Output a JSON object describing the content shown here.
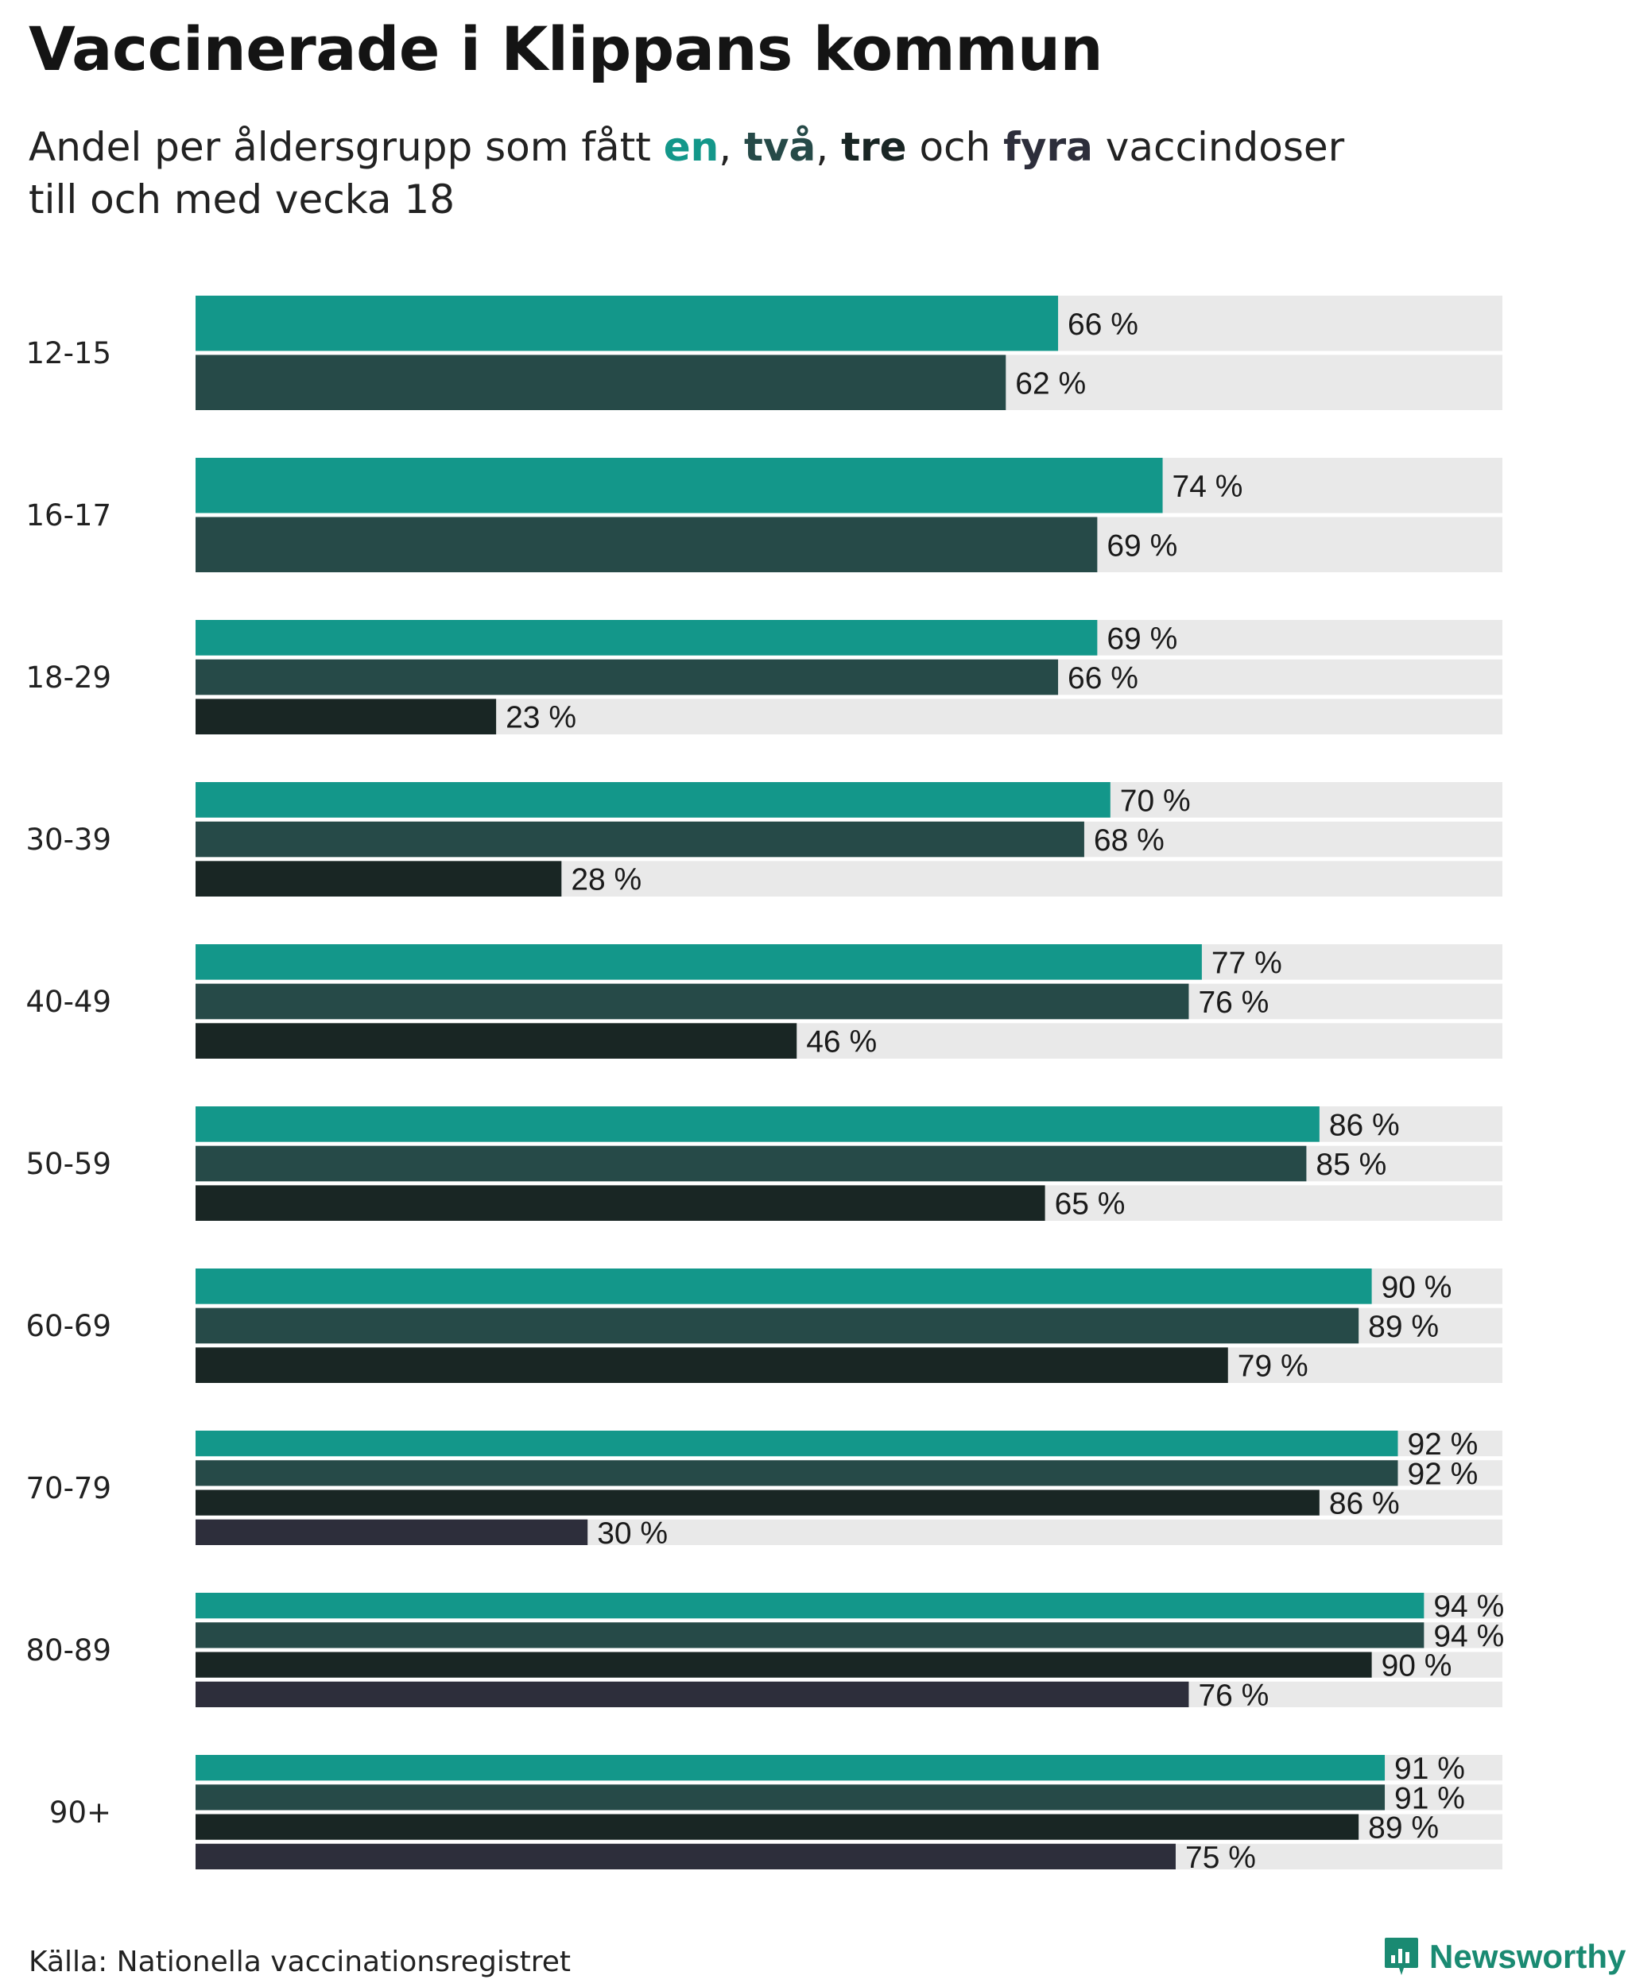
{
  "header": {
    "title": "Vaccinerade i Klippans kommun",
    "subtitle_line1_prefix": "Andel per åldersgrupp som fått ",
    "subtitle_word1": "en",
    "subtitle_sep1": ", ",
    "subtitle_word2": "två",
    "subtitle_sep2": ", ",
    "subtitle_word3": "tre",
    "subtitle_mid": " och ",
    "subtitle_word4": "fyra",
    "subtitle_line1_suffix": " vaccindoser",
    "subtitle_line2": "till och med vecka 18"
  },
  "footer": {
    "source": "Källa: Nationella vaccinationsregistret",
    "brand": "Newsworthy"
  },
  "colors": {
    "dose1": "#13978a",
    "dose2": "#264a48",
    "dose3": "#192624",
    "dose4": "#2d2e3b",
    "track": "#e9e9e9",
    "brand": "#1a8a72"
  },
  "chart_data": {
    "type": "bar",
    "orientation": "horizontal",
    "title": "Vaccinerade i Klippans kommun",
    "xlim": [
      0,
      100
    ],
    "unit": "%",
    "categories": [
      "12-15",
      "16-17",
      "18-29",
      "30-39",
      "40-49",
      "50-59",
      "60-69",
      "70-79",
      "80-89",
      "90+"
    ],
    "series": [
      {
        "name": "en",
        "values": [
          66,
          74,
          69,
          70,
          77,
          86,
          90,
          92,
          94,
          91
        ]
      },
      {
        "name": "två",
        "values": [
          62,
          69,
          66,
          68,
          76,
          85,
          89,
          92,
          94,
          91
        ]
      },
      {
        "name": "tre",
        "values": [
          null,
          null,
          23,
          28,
          46,
          65,
          79,
          86,
          90,
          89
        ]
      },
      {
        "name": "fyra",
        "values": [
          null,
          null,
          null,
          null,
          null,
          null,
          null,
          30,
          76,
          75
        ]
      }
    ]
  }
}
